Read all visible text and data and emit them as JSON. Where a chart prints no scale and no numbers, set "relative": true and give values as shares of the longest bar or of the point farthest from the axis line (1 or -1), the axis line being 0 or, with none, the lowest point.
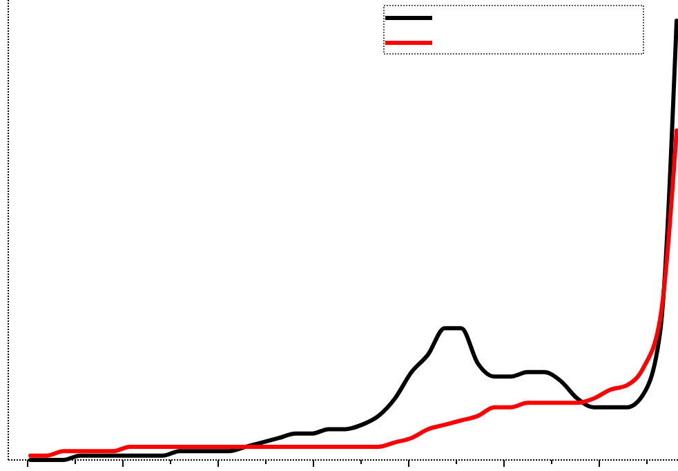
{
  "chart_data": {
    "type": "line",
    "relative": true,
    "marker": "none",
    "line_style": "solid",
    "categories": [
      null,
      null,
      null,
      null,
      null,
      null,
      null,
      null,
      null,
      null,
      null,
      null,
      null,
      null,
      null,
      null,
      null,
      null,
      null,
      null,
      null,
      null,
      null,
      null,
      null,
      null,
      null,
      null,
      null,
      null,
      null,
      null,
      null,
      null,
      null,
      null,
      null,
      null,
      null,
      null
    ],
    "series": [
      {
        "color": "#000000",
        "values": [
          0,
          0,
          0,
          0.01,
          0.01,
          0.01,
          0.01,
          0.01,
          0.01,
          0.02,
          0.02,
          0.02,
          0.02,
          0.03,
          0.04,
          0.05,
          0.06,
          0.06,
          0.07,
          0.07,
          0.08,
          0.1,
          0.14,
          0.2,
          0.24,
          0.3,
          0.3,
          0.22,
          0.19,
          0.19,
          0.2,
          0.2,
          0.18,
          0.14,
          0.12,
          0.12,
          0.12,
          0.15,
          0.29,
          1
        ]
      },
      {
        "color": "#ff0000",
        "values": [
          0.01,
          0.01,
          0.02,
          0.02,
          0.02,
          0.02,
          0.03,
          0.03,
          0.03,
          0.03,
          0.03,
          0.03,
          0.03,
          0.03,
          0.03,
          0.03,
          0.03,
          0.03,
          0.03,
          0.03,
          0.03,
          0.03,
          0.04,
          0.05,
          0.07,
          0.08,
          0.09,
          0.1,
          0.12,
          0.12,
          0.13,
          0.13,
          0.13,
          0.13,
          0.14,
          0.16,
          0.17,
          0.21,
          0.32,
          0.75
        ]
      }
    ]
  }
}
